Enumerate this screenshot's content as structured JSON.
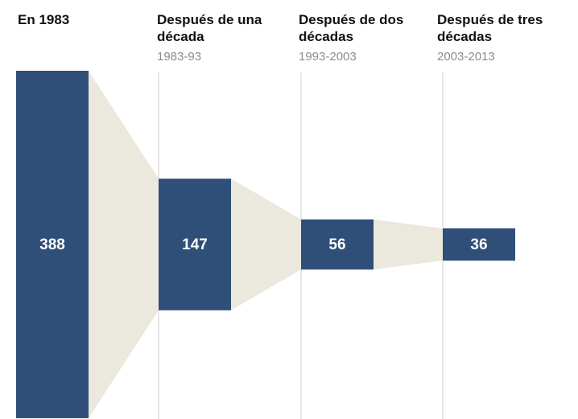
{
  "colors": {
    "bar": "#2f4f78",
    "band": "#ebe8de",
    "divider": "#cfcfcf",
    "value_text": "#ffffff"
  },
  "headers": [
    {
      "title": "En 1983",
      "subtitle": ""
    },
    {
      "title": "Después de una\ndécada",
      "subtitle": "1983-93"
    },
    {
      "title": "Después de dos\ndécadas",
      "subtitle": "1993-2003"
    },
    {
      "title": "Después de tres\ndécadas",
      "subtitle": "2003-2013"
    }
  ],
  "chart_data": {
    "type": "bar",
    "categories": [
      "En 1983",
      "Después de una década",
      "Después de dos décadas",
      "Después de tres décadas"
    ],
    "values": [
      388,
      147,
      56,
      36
    ],
    "value_labels": [
      "388",
      "147",
      "56",
      "36"
    ],
    "grid": false,
    "legend": "none"
  }
}
